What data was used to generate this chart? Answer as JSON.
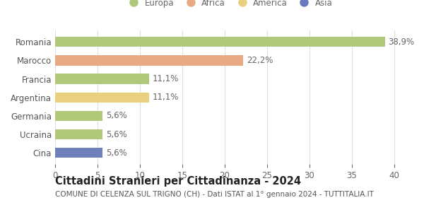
{
  "categories": [
    "Romania",
    "Marocco",
    "Francia",
    "Argentina",
    "Germania",
    "Ucraina",
    "Cina"
  ],
  "values": [
    38.9,
    22.2,
    11.1,
    11.1,
    5.6,
    5.6,
    5.6
  ],
  "labels": [
    "38,9%",
    "22,2%",
    "11,1%",
    "11,1%",
    "5,6%",
    "5,6%",
    "5,6%"
  ],
  "colors": [
    "#afc87a",
    "#e8aa84",
    "#afc87a",
    "#e8d080",
    "#afc87a",
    "#afc87a",
    "#7080b8"
  ],
  "legend": [
    {
      "label": "Europa",
      "color": "#afc87a"
    },
    {
      "label": "Africa",
      "color": "#e8aa84"
    },
    {
      "label": "America",
      "color": "#e8d080"
    },
    {
      "label": "Asia",
      "color": "#6a7abf"
    }
  ],
  "xlim": [
    0,
    41
  ],
  "xticks": [
    0,
    5,
    10,
    15,
    20,
    25,
    30,
    35,
    40
  ],
  "title_bold": "Cittadini Stranieri per Cittadinanza - 2024",
  "subtitle": "COMUNE DI CELENZA SUL TRIGNO (CH) - Dati ISTAT al 1° gennaio 2024 - TUTTITALIA.IT",
  "background_color": "#ffffff",
  "grid_color": "#e0e0e0",
  "bar_height": 0.55,
  "label_fontsize": 8.5,
  "tick_fontsize": 8.5,
  "title_fontsize": 10.5,
  "subtitle_fontsize": 7.5
}
